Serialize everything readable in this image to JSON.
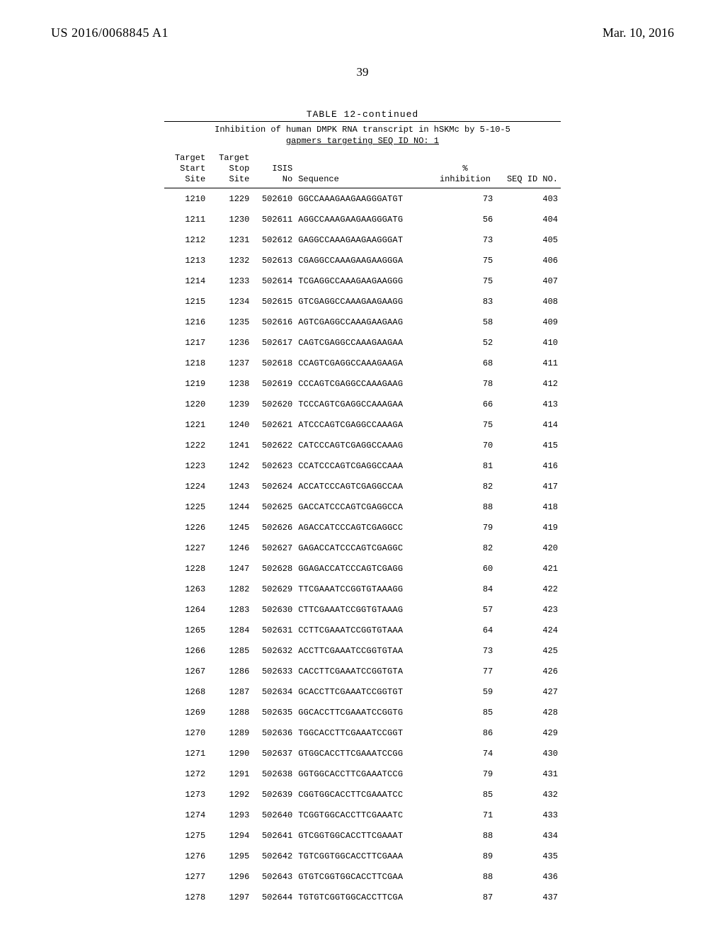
{
  "header": {
    "pub_number": "US 2016/0068845 A1",
    "pub_date": "Mar. 10, 2016",
    "page_number_top": "39"
  },
  "table": {
    "caption": "TABLE 12-continued",
    "subcaption_line1": "Inhibition of human DMPK RNA transcript in hSKMc by 5-10-5",
    "subcaption_line2": "gapmers targeting SEQ ID NO: 1",
    "columns": {
      "start": "Target\nStart\nSite",
      "stop": "Target\nStop\nSite",
      "isis": "\nISIS\nNo",
      "sequence": "\n\nSequence",
      "inhibition": "\n%\ninhibition",
      "seq_id": "\n\nSEQ ID NO."
    },
    "rows": [
      {
        "start": 1210,
        "stop": 1229,
        "isis": 502610,
        "seq": "GGCCAAAGAAGAAGGGATGT",
        "inh": 73,
        "sid": 403
      },
      {
        "start": 1211,
        "stop": 1230,
        "isis": 502611,
        "seq": "AGGCCAAAGAAGAAGGGATG",
        "inh": 56,
        "sid": 404
      },
      {
        "start": 1212,
        "stop": 1231,
        "isis": 502612,
        "seq": "GAGGCCAAAGAAGAAGGGAT",
        "inh": 73,
        "sid": 405
      },
      {
        "start": 1213,
        "stop": 1232,
        "isis": 502613,
        "seq": "CGAGGCCAAAGAAGAAGGGA",
        "inh": 75,
        "sid": 406
      },
      {
        "start": 1214,
        "stop": 1233,
        "isis": 502614,
        "seq": "TCGAGGCCAAAGAAGAAGGG",
        "inh": 75,
        "sid": 407
      },
      {
        "start": 1215,
        "stop": 1234,
        "isis": 502615,
        "seq": "GTCGAGGCCAAAGAAGAAGG",
        "inh": 83,
        "sid": 408
      },
      {
        "start": 1216,
        "stop": 1235,
        "isis": 502616,
        "seq": "AGTCGAGGCCAAAGAAGAAG",
        "inh": 58,
        "sid": 409
      },
      {
        "start": 1217,
        "stop": 1236,
        "isis": 502617,
        "seq": "CAGTCGAGGCCAAAGAAGAA",
        "inh": 52,
        "sid": 410
      },
      {
        "start": 1218,
        "stop": 1237,
        "isis": 502618,
        "seq": "CCAGTCGAGGCCAAAGAAGA",
        "inh": 68,
        "sid": 411
      },
      {
        "start": 1219,
        "stop": 1238,
        "isis": 502619,
        "seq": "CCCAGTCGAGGCCAAAGAAG",
        "inh": 78,
        "sid": 412
      },
      {
        "start": 1220,
        "stop": 1239,
        "isis": 502620,
        "seq": "TCCCAGTCGAGGCCAAAGAA",
        "inh": 66,
        "sid": 413
      },
      {
        "start": 1221,
        "stop": 1240,
        "isis": 502621,
        "seq": "ATCCCAGTCGAGGCCAAAGA",
        "inh": 75,
        "sid": 414
      },
      {
        "start": 1222,
        "stop": 1241,
        "isis": 502622,
        "seq": "CATCCCAGTCGAGGCCAAAG",
        "inh": 70,
        "sid": 415
      },
      {
        "start": 1223,
        "stop": 1242,
        "isis": 502623,
        "seq": "CCATCCCAGTCGAGGCCAAA",
        "inh": 81,
        "sid": 416
      },
      {
        "start": 1224,
        "stop": 1243,
        "isis": 502624,
        "seq": "ACCATCCCAGTCGAGGCCAA",
        "inh": 82,
        "sid": 417
      },
      {
        "start": 1225,
        "stop": 1244,
        "isis": 502625,
        "seq": "GACCATCCCAGTCGAGGCCA",
        "inh": 88,
        "sid": 418
      },
      {
        "start": 1226,
        "stop": 1245,
        "isis": 502626,
        "seq": "AGACCATCCCAGTCGAGGCC",
        "inh": 79,
        "sid": 419
      },
      {
        "start": 1227,
        "stop": 1246,
        "isis": 502627,
        "seq": "GAGACCATCCCAGTCGAGGC",
        "inh": 82,
        "sid": 420
      },
      {
        "start": 1228,
        "stop": 1247,
        "isis": 502628,
        "seq": "GGAGACCATCCCAGTCGAGG",
        "inh": 60,
        "sid": 421
      },
      {
        "start": 1263,
        "stop": 1282,
        "isis": 502629,
        "seq": "TTCGAAATCCGGTGTAAAGG",
        "inh": 84,
        "sid": 422
      },
      {
        "start": 1264,
        "stop": 1283,
        "isis": 502630,
        "seq": "CTTCGAAATCCGGTGTAAAG",
        "inh": 57,
        "sid": 423
      },
      {
        "start": 1265,
        "stop": 1284,
        "isis": 502631,
        "seq": "CCTTCGAAATCCGGTGTAAA",
        "inh": 64,
        "sid": 424
      },
      {
        "start": 1266,
        "stop": 1285,
        "isis": 502632,
        "seq": "ACCTTCGAAATCCGGTGTAA",
        "inh": 73,
        "sid": 425
      },
      {
        "start": 1267,
        "stop": 1286,
        "isis": 502633,
        "seq": "CACCTTCGAAATCCGGTGTA",
        "inh": 77,
        "sid": 426
      },
      {
        "start": 1268,
        "stop": 1287,
        "isis": 502634,
        "seq": "GCACCTTCGAAATCCGGTGT",
        "inh": 59,
        "sid": 427
      },
      {
        "start": 1269,
        "stop": 1288,
        "isis": 502635,
        "seq": "GGCACCTTCGAAATCCGGTG",
        "inh": 85,
        "sid": 428
      },
      {
        "start": 1270,
        "stop": 1289,
        "isis": 502636,
        "seq": "TGGCACCTTCGAAATCCGGT",
        "inh": 86,
        "sid": 429
      },
      {
        "start": 1271,
        "stop": 1290,
        "isis": 502637,
        "seq": "GTGGCACCTTCGAAATCCGG",
        "inh": 74,
        "sid": 430
      },
      {
        "start": 1272,
        "stop": 1291,
        "isis": 502638,
        "seq": "GGTGGCACCTTCGAAATCCG",
        "inh": 79,
        "sid": 431
      },
      {
        "start": 1273,
        "stop": 1292,
        "isis": 502639,
        "seq": "CGGTGGCACCTTCGAAATCC",
        "inh": 85,
        "sid": 432
      },
      {
        "start": 1274,
        "stop": 1293,
        "isis": 502640,
        "seq": "TCGGTGGCACCTTCGAAATC",
        "inh": 71,
        "sid": 433
      },
      {
        "start": 1275,
        "stop": 1294,
        "isis": 502641,
        "seq": "GTCGGTGGCACCTTCGAAAT",
        "inh": 88,
        "sid": 434
      },
      {
        "start": 1276,
        "stop": 1295,
        "isis": 502642,
        "seq": "TGTCGGTGGCACCTTCGAAA",
        "inh": 89,
        "sid": 435
      },
      {
        "start": 1277,
        "stop": 1296,
        "isis": 502643,
        "seq": "GTGTCGGTGGCACCTTCGAA",
        "inh": 88,
        "sid": 436
      },
      {
        "start": 1278,
        "stop": 1297,
        "isis": 502644,
        "seq": "TGTGTCGGTGGCACCTTCGA",
        "inh": 87,
        "sid": 437
      }
    ]
  }
}
